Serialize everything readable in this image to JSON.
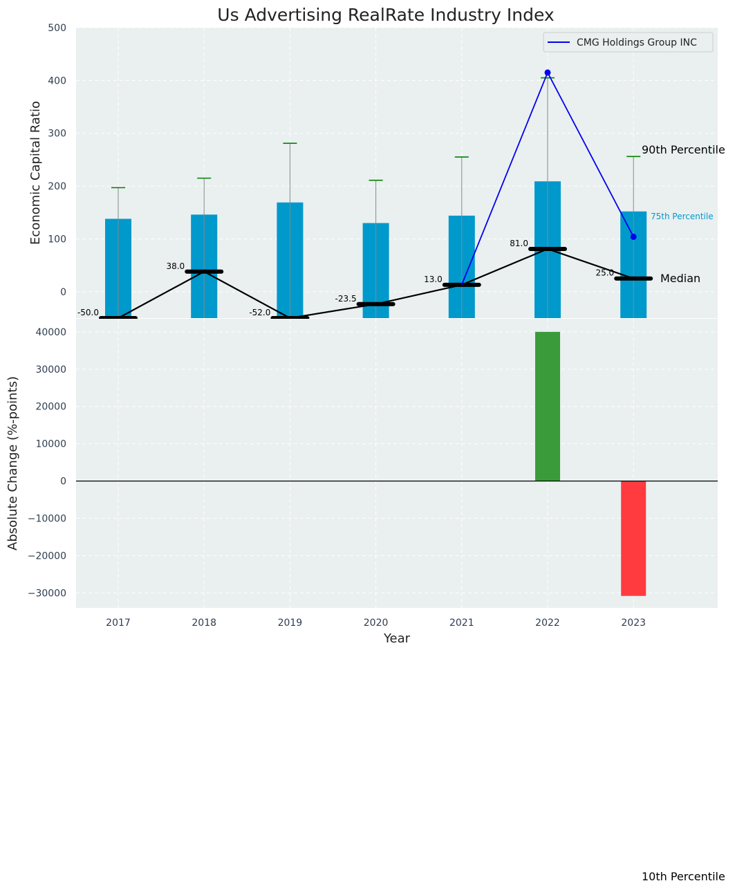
{
  "chart_data": [
    {
      "type": "bar+line",
      "title": "Us Advertising RealRate Industry Index",
      "xlabel": "",
      "ylabel": "Economic Capital Ratio",
      "ylim": [
        -50,
        500
      ],
      "yticks": [
        0,
        100,
        200,
        300,
        400,
        500
      ],
      "categories": [
        "2017",
        "2018",
        "2019",
        "2020",
        "2021",
        "2022",
        "2023"
      ],
      "percentile_75": [
        138,
        146,
        169,
        130,
        144,
        209,
        152
      ],
      "percentile_90": [
        197,
        215,
        281,
        211,
        255,
        405,
        256
      ],
      "median": [
        -50.0,
        38.0,
        -52.0,
        -23.5,
        13.0,
        81.0,
        25.0
      ],
      "median_labels": [
        "-50.0",
        "38.0",
        "-52.0",
        "-23.5",
        "13.0",
        "81.0",
        "25.0"
      ],
      "company_series": {
        "name": "CMG Holdings Group INC",
        "x": [
          "2021",
          "2022",
          "2023"
        ],
        "values": [
          13,
          415,
          104
        ],
        "color": "#0000ee"
      },
      "annotations": {
        "p90": "90th Percentile",
        "p75": "75th Percentile",
        "median": "Median",
        "p10": "10th Percentile"
      },
      "colors": {
        "bar": "#0099cc",
        "whisker": "#008000",
        "median": "#000000",
        "background": "#eaeff0"
      }
    },
    {
      "type": "bar",
      "xlabel": "Year",
      "ylabel": "Absolute Change (%-points)",
      "ylim": [
        -34000,
        43500
      ],
      "yticks": [
        -30000,
        -20000,
        -10000,
        0,
        10000,
        20000,
        30000,
        40000
      ],
      "ytick_labels": [
        "−30000",
        "−20000",
        "−10000",
        "0",
        "10000",
        "20000",
        "30000",
        "40000"
      ],
      "categories": [
        "2017",
        "2018",
        "2019",
        "2020",
        "2021",
        "2022",
        "2023"
      ],
      "values": [
        0,
        0,
        0,
        0,
        0,
        40000,
        -30800
      ],
      "colors": {
        "positive": "#3a9b3a",
        "negative": "#ff3b3f"
      }
    }
  ]
}
